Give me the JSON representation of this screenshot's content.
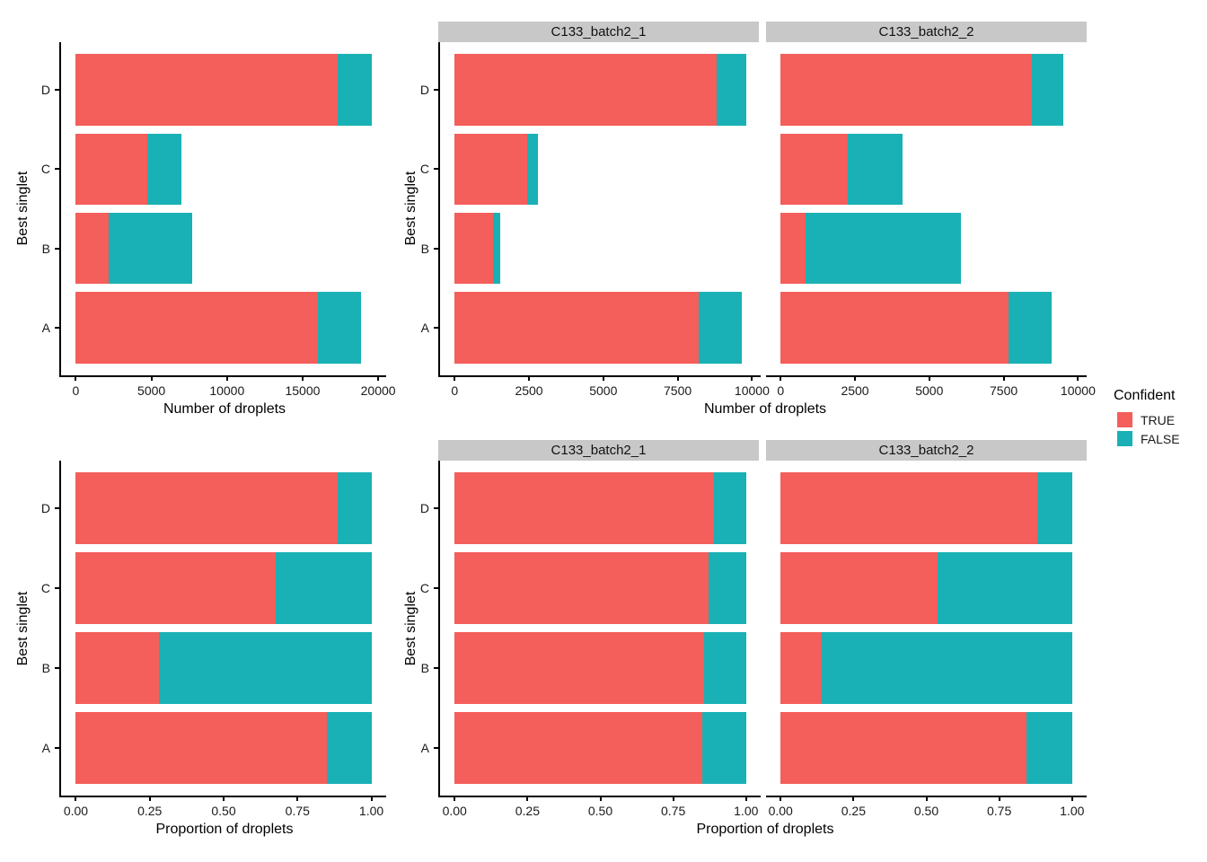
{
  "figure": {
    "background": "#FFFFFF",
    "y_axis_title": "Best singlet",
    "top_x_axis_title": "Number of droplets",
    "bottom_x_axis_title": "Proportion of droplets",
    "facet_labels": [
      "C133_batch2_1",
      "C133_batch2_2"
    ]
  },
  "colors": {
    "true_fill": "#F45E5B",
    "false_fill": "#19B1B5",
    "strip_bg": "#C8C8C8",
    "axis": "#000000"
  },
  "legend": {
    "title": "Confident",
    "entries": [
      {
        "label": "TRUE",
        "color": "#F45E5B"
      },
      {
        "label": "FALSE",
        "color": "#19B1B5"
      }
    ]
  },
  "chart_data": [
    {
      "id": "panel-tl",
      "type": "bar",
      "orientation": "horizontal",
      "stacked": true,
      "facet": null,
      "title": "",
      "xlabel": "Number of droplets",
      "ylabel": "Best singlet",
      "categories": [
        "D",
        "C",
        "B",
        "A"
      ],
      "series": [
        {
          "name": "TRUE",
          "values": [
            17300,
            4700,
            2150,
            16000
          ]
        },
        {
          "name": "FALSE",
          "values": [
            2250,
            2300,
            5550,
            2850
          ]
        }
      ],
      "xlim": [
        0,
        20000
      ],
      "ticks": [
        0,
        5000,
        10000,
        15000,
        20000
      ],
      "tick_labels": [
        "0",
        "5000",
        "10000",
        "15000",
        "20000"
      ],
      "plot_max": 19550,
      "show_y_labels": true
    },
    {
      "id": "panel-tm",
      "type": "bar",
      "orientation": "horizontal",
      "stacked": true,
      "facet": "C133_batch2_1",
      "title": "",
      "xlabel": "Number of droplets",
      "ylabel": "Best singlet",
      "categories": [
        "D",
        "C",
        "B",
        "A"
      ],
      "series": [
        {
          "name": "TRUE",
          "values": [
            8800,
            2450,
            1300,
            8200
          ]
        },
        {
          "name": "FALSE",
          "values": [
            1000,
            360,
            220,
            1450
          ]
        }
      ],
      "xlim": [
        0,
        10000
      ],
      "ticks": [
        0,
        2500,
        5000,
        7500,
        10000
      ],
      "tick_labels": [
        "0",
        "2500",
        "5000",
        "7500",
        "10000"
      ],
      "plot_max": 9800,
      "show_y_labels": true
    },
    {
      "id": "panel-tr",
      "type": "bar",
      "orientation": "horizontal",
      "stacked": true,
      "facet": "C133_batch2_2",
      "title": "",
      "xlabel": "Number of droplets",
      "ylabel": "Best singlet",
      "categories": [
        "D",
        "C",
        "B",
        "A"
      ],
      "series": [
        {
          "name": "TRUE",
          "values": [
            8450,
            2250,
            850,
            7650
          ]
        },
        {
          "name": "FALSE",
          "values": [
            1050,
            1850,
            5200,
            1450
          ]
        }
      ],
      "xlim": [
        0,
        10000
      ],
      "ticks": [
        0,
        2500,
        5000,
        7500,
        10000
      ],
      "tick_labels": [
        "0",
        "2500",
        "5000",
        "7500",
        "10000"
      ],
      "plot_max": 9800,
      "show_y_labels": false
    },
    {
      "id": "panel-bl",
      "type": "bar",
      "orientation": "horizontal",
      "stacked": true,
      "facet": null,
      "title": "",
      "xlabel": "Proportion of droplets",
      "ylabel": "Best singlet",
      "categories": [
        "D",
        "C",
        "B",
        "A"
      ],
      "series": [
        {
          "name": "TRUE",
          "values": [
            0.885,
            0.675,
            0.28,
            0.85
          ]
        },
        {
          "name": "FALSE",
          "values": [
            0.115,
            0.325,
            0.72,
            0.15
          ]
        }
      ],
      "xlim": [
        0,
        1
      ],
      "ticks": [
        0,
        0.25,
        0.5,
        0.75,
        1
      ],
      "tick_labels": [
        "0.00",
        "0.25",
        "0.50",
        "0.75",
        "1.00"
      ],
      "plot_max": 1,
      "show_y_labels": true
    },
    {
      "id": "panel-bm",
      "type": "bar",
      "orientation": "horizontal",
      "stacked": true,
      "facet": "C133_batch2_1",
      "title": "",
      "xlabel": "Proportion of droplets",
      "ylabel": "Best singlet",
      "categories": [
        "D",
        "C",
        "B",
        "A"
      ],
      "series": [
        {
          "name": "TRUE",
          "values": [
            0.89,
            0.87,
            0.855,
            0.85
          ]
        },
        {
          "name": "FALSE",
          "values": [
            0.11,
            0.13,
            0.145,
            0.15
          ]
        }
      ],
      "xlim": [
        0,
        1
      ],
      "ticks": [
        0,
        0.25,
        0.5,
        0.75,
        1
      ],
      "tick_labels": [
        "0.00",
        "0.25",
        "0.50",
        "0.75",
        "1.00"
      ],
      "plot_max": 1,
      "show_y_labels": true
    },
    {
      "id": "panel-br",
      "type": "bar",
      "orientation": "horizontal",
      "stacked": true,
      "facet": "C133_batch2_2",
      "title": "",
      "xlabel": "Proportion of droplets",
      "ylabel": "Best singlet",
      "categories": [
        "D",
        "C",
        "B",
        "A"
      ],
      "series": [
        {
          "name": "TRUE",
          "values": [
            0.88,
            0.54,
            0.14,
            0.845
          ]
        },
        {
          "name": "FALSE",
          "values": [
            0.12,
            0.46,
            0.86,
            0.155
          ]
        }
      ],
      "xlim": [
        0,
        1
      ],
      "ticks": [
        0,
        0.25,
        0.5,
        0.75,
        1
      ],
      "tick_labels": [
        "0.00",
        "0.25",
        "0.50",
        "0.75",
        "1.00"
      ],
      "plot_max": 1,
      "show_y_labels": false
    }
  ]
}
